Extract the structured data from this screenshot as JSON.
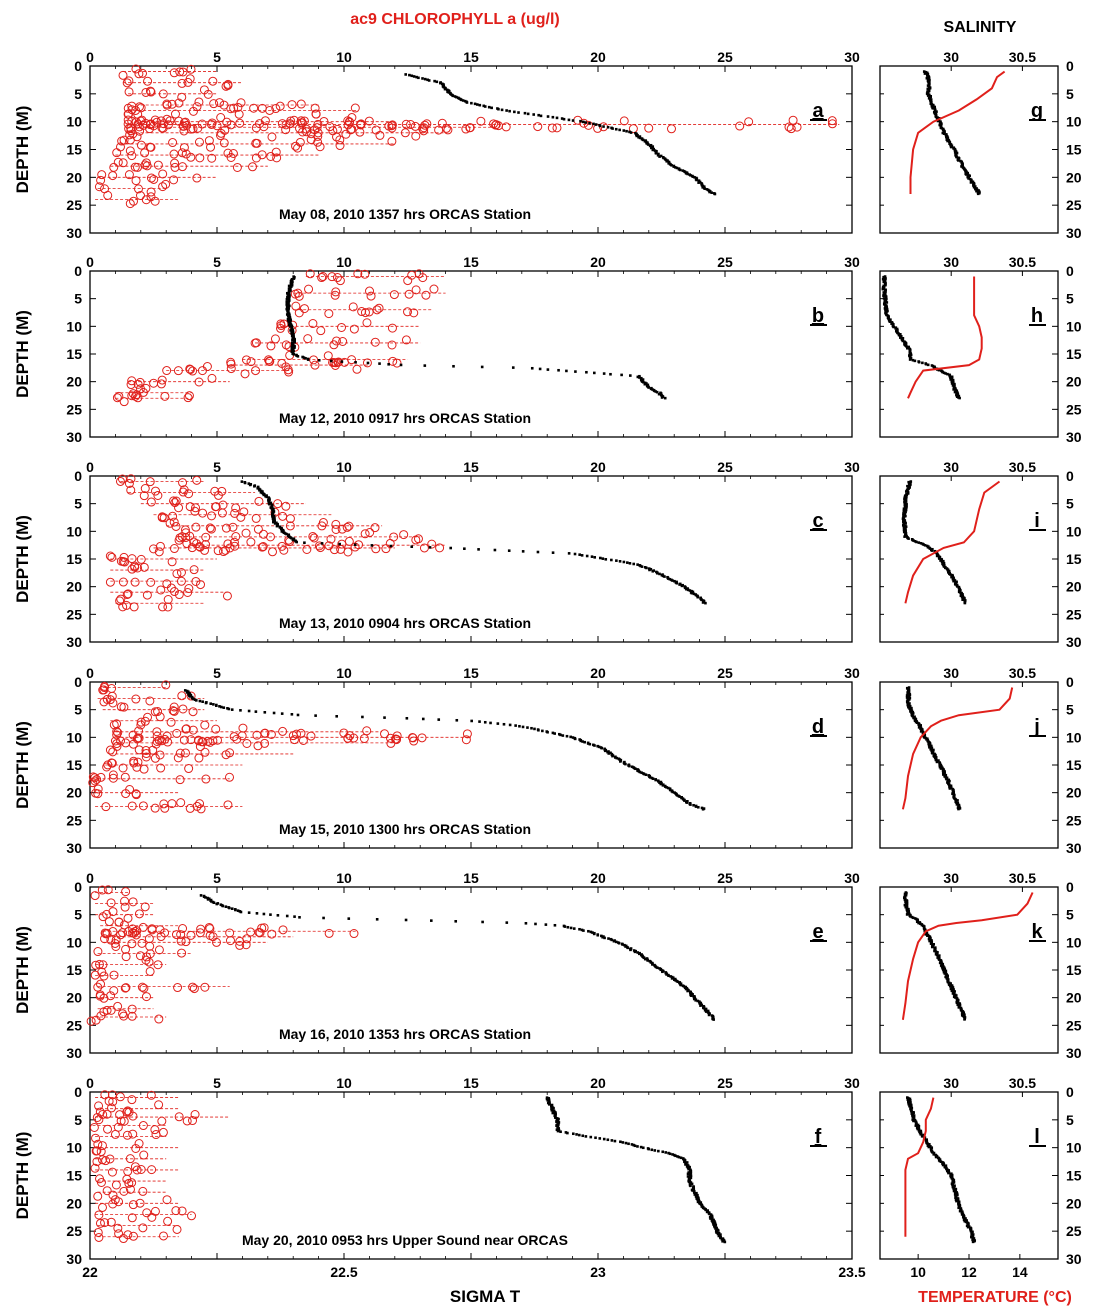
{
  "figure": {
    "top_title": "ac9 CHLOROPHYLL a (ug/l)",
    "right_top_title": "SALINITY",
    "bottom_xlabel": "SIGMA T",
    "right_bottom_xlabel": "TEMPERATURE (°C)",
    "ylabel": "DEPTH (M)",
    "colors": {
      "chlorophyll": "#e0201b",
      "sigma_t": "#000000",
      "temperature": "#e0201b",
      "salinity": "#000000"
    }
  },
  "chart_data": [
    {
      "type": "scatter",
      "id": "a",
      "panel_label": "a",
      "caption": "May 08, 2010  1357 hrs ORCAS Station",
      "xlabel": "ac9 CHLOROPHYLL a (ug/l)",
      "ylabel": "DEPTH (M)",
      "chl_xlim": [
        0,
        30
      ],
      "sigma_t_xlim": [
        22,
        23.5
      ],
      "ylim": [
        30,
        0
      ],
      "chl_ticks": [
        "0",
        "5",
        "10",
        "15",
        "20",
        "25",
        "30"
      ],
      "y_ticks": [
        "0",
        "5",
        "10",
        "15",
        "20",
        "25",
        "30"
      ],
      "chlorophyll": {
        "depth": [
          1,
          3,
          5,
          7,
          8,
          10,
          10.5,
          11,
          12,
          14,
          16,
          18,
          20,
          22,
          24
        ],
        "min": [
          1.3,
          1.3,
          1.5,
          1.8,
          1.5,
          1.8,
          1.5,
          1.5,
          1.4,
          1.2,
          1.0,
          0.8,
          0.3,
          0.3,
          0.2
        ],
        "max": [
          5.0,
          6.0,
          5.0,
          9.0,
          10.5,
          12.0,
          29.5,
          16.0,
          14.0,
          12.0,
          9.0,
          7.0,
          5.0,
          3.0,
          3.5
        ]
      },
      "sigma_t": {
        "depth": [
          1.5,
          3,
          5,
          6.5,
          8,
          10,
          12,
          14,
          16,
          18,
          20,
          22,
          23
        ],
        "value": [
          22.62,
          22.69,
          22.71,
          22.74,
          22.82,
          22.97,
          23.07,
          23.1,
          23.12,
          23.15,
          23.19,
          23.21,
          23.23
        ]
      }
    },
    {
      "type": "scatter",
      "id": "g",
      "panel_label": "g",
      "x_ticks": [
        "30",
        "30.5"
      ],
      "xlim_salinity": [
        29.5,
        30.75
      ],
      "xlim_temperature": [
        8.5,
        15.5
      ],
      "ylim": [
        30,
        0
      ],
      "y_ticks": [
        "0",
        "5",
        "10",
        "15",
        "20",
        "25",
        "30"
      ],
      "salinity": {
        "depth": [
          1,
          3,
          5,
          7,
          9,
          12,
          15,
          18,
          21,
          23
        ],
        "value": [
          29.82,
          29.85,
          29.84,
          29.87,
          29.9,
          29.95,
          30.02,
          30.08,
          30.15,
          30.2
        ]
      },
      "temperature": {
        "depth": [
          1,
          2,
          4,
          6,
          8,
          10,
          12,
          15,
          20,
          23
        ],
        "value": [
          13.4,
          13.1,
          12.9,
          12.3,
          11.6,
          10.6,
          10.0,
          9.8,
          9.7,
          9.7
        ]
      }
    },
    {
      "type": "scatter",
      "id": "b",
      "panel_label": "b",
      "caption": "May 12, 2010  0917 hrs ORCAS Station",
      "chl_xlim": [
        0,
        30
      ],
      "sigma_t_xlim": [
        22,
        23.5
      ],
      "ylim": [
        30,
        0
      ],
      "chl_ticks": [
        "0",
        "5",
        "10",
        "15",
        "20",
        "25",
        "30"
      ],
      "y_ticks": [
        "0",
        "5",
        "10",
        "15",
        "20",
        "25",
        "30"
      ],
      "chlorophyll": {
        "depth": [
          1,
          4,
          7,
          10,
          13,
          16,
          17,
          18,
          20,
          22,
          23
        ],
        "min": [
          8.5,
          8.0,
          8.0,
          7.5,
          6.5,
          6.0,
          5.5,
          3.0,
          1.5,
          1.0,
          1.0
        ],
        "max": [
          14.0,
          14.0,
          13.5,
          13.0,
          13.0,
          12.5,
          11.0,
          8.0,
          5.5,
          4.0,
          4.0
        ]
      },
      "sigma_t": {
        "depth": [
          1,
          4,
          8,
          12,
          15,
          16,
          17,
          17.5,
          19,
          21,
          22,
          23
        ],
        "value": [
          22.4,
          22.39,
          22.39,
          22.4,
          22.4,
          22.43,
          22.62,
          22.86,
          23.08,
          23.1,
          23.12,
          23.13
        ]
      }
    },
    {
      "type": "scatter",
      "id": "h",
      "panel_label": "h",
      "x_ticks": [
        "30",
        "30.5"
      ],
      "xlim_salinity": [
        29.5,
        30.75
      ],
      "xlim_temperature": [
        8.5,
        15.5
      ],
      "ylim": [
        30,
        0
      ],
      "y_ticks": [
        "0",
        "5",
        "10",
        "15",
        "20",
        "25",
        "30"
      ],
      "salinity": {
        "depth": [
          1,
          4,
          8,
          10,
          12,
          14,
          16,
          17,
          19,
          21,
          23
        ],
        "value": [
          29.53,
          29.53,
          29.55,
          29.6,
          29.65,
          29.7,
          29.72,
          29.85,
          30.0,
          30.02,
          30.05
        ]
      },
      "temperature": {
        "depth": [
          1,
          4,
          8,
          10,
          12,
          14,
          16,
          17,
          18,
          20,
          22,
          23
        ],
        "value": [
          12.2,
          12.2,
          12.2,
          12.4,
          12.5,
          12.5,
          12.4,
          12.0,
          10.2,
          9.9,
          9.7,
          9.6
        ]
      }
    },
    {
      "type": "scatter",
      "id": "c",
      "panel_label": "c",
      "caption": "May 13,  2010  0904 hrs ORCAS Station",
      "chl_xlim": [
        0,
        30
      ],
      "sigma_t_xlim": [
        22,
        23.5
      ],
      "ylim": [
        30,
        0
      ],
      "chl_ticks": [
        "0",
        "5",
        "10",
        "15",
        "20",
        "25",
        "30"
      ],
      "y_ticks": [
        "0",
        "5",
        "10",
        "15",
        "20",
        "25",
        "30"
      ],
      "chlorophyll": {
        "depth": [
          1,
          3,
          5,
          7,
          9,
          11,
          12.5,
          13,
          15,
          17,
          19,
          21,
          23
        ],
        "min": [
          1.2,
          1.5,
          2.0,
          2.5,
          3.0,
          3.5,
          4.0,
          2.5,
          0.8,
          0.8,
          0.8,
          0.8,
          1.0
        ],
        "max": [
          4.5,
          6.5,
          8.5,
          9.5,
          11.5,
          13.0,
          14.0,
          12.0,
          5.0,
          4.5,
          4.5,
          5.5,
          4.5
        ]
      },
      "sigma_t": {
        "depth": [
          1,
          2,
          4,
          6,
          8,
          10,
          12,
          12.5,
          13,
          14,
          16,
          18,
          20,
          22,
          23
        ],
        "value": [
          22.3,
          22.33,
          22.35,
          22.36,
          22.36,
          22.38,
          22.41,
          22.55,
          22.71,
          22.95,
          23.08,
          23.13,
          23.17,
          23.2,
          23.21
        ]
      }
    },
    {
      "type": "scatter",
      "id": "i",
      "panel_label": "i",
      "x_ticks": [
        "30",
        "30.5"
      ],
      "xlim_salinity": [
        29.5,
        30.75
      ],
      "xlim_temperature": [
        8.5,
        15.5
      ],
      "ylim": [
        30,
        0
      ],
      "y_ticks": [
        "0",
        "5",
        "10",
        "15",
        "20",
        "25",
        "30"
      ],
      "salinity": {
        "depth": [
          1,
          4,
          8,
          11,
          12.5,
          14,
          16,
          18,
          20,
          23
        ],
        "value": [
          29.71,
          29.68,
          29.67,
          29.68,
          29.82,
          29.9,
          29.95,
          30.0,
          30.05,
          30.1
        ]
      },
      "temperature": {
        "depth": [
          1,
          3,
          6,
          10,
          12,
          13,
          15,
          18,
          21,
          23
        ],
        "value": [
          13.2,
          12.6,
          12.4,
          12.2,
          11.8,
          11.0,
          10.2,
          9.8,
          9.6,
          9.5
        ]
      }
    },
    {
      "type": "scatter",
      "id": "d",
      "panel_label": "d",
      "caption": "May 15,  2010  1300 hrs ORCAS Station",
      "chl_xlim": [
        0,
        30
      ],
      "sigma_t_xlim": [
        22,
        23.5
      ],
      "ylim": [
        30,
        0
      ],
      "chl_ticks": [
        "0",
        "5",
        "10",
        "15",
        "20",
        "25",
        "30"
      ],
      "y_ticks": [
        "0",
        "5",
        "10",
        "15",
        "20",
        "25",
        "30"
      ],
      "chlorophyll": {
        "depth": [
          1,
          3,
          5,
          7,
          9,
          10,
          11,
          13,
          15,
          17.5,
          20,
          22.5
        ],
        "min": [
          0.5,
          0.3,
          0.5,
          0.8,
          1.0,
          1.2,
          1.0,
          0.8,
          0.6,
          0.1,
          0.2,
          0.2
        ],
        "max": [
          3.0,
          4.5,
          4.5,
          5.0,
          11.5,
          15.0,
          12.0,
          8.0,
          6.0,
          5.5,
          3.5,
          6.0
        ]
      },
      "sigma_t": {
        "depth": [
          1.5,
          3,
          5,
          6,
          6.5,
          7,
          8,
          10,
          12,
          14,
          16,
          18,
          20,
          22,
          23
        ],
        "value": [
          22.19,
          22.2,
          22.28,
          22.42,
          22.61,
          22.75,
          22.85,
          22.95,
          23.01,
          23.04,
          23.08,
          23.12,
          23.15,
          23.18,
          23.21
        ]
      }
    },
    {
      "type": "scatter",
      "id": "j",
      "panel_label": "j",
      "x_ticks": [
        "30",
        "30.5"
      ],
      "xlim_salinity": [
        29.5,
        30.75
      ],
      "xlim_temperature": [
        8.5,
        15.5
      ],
      "ylim": [
        30,
        0
      ],
      "y_ticks": [
        "0",
        "5",
        "10",
        "15",
        "20",
        "25",
        "30"
      ],
      "salinity": {
        "depth": [
          1,
          4,
          6,
          8,
          10,
          12,
          15,
          18,
          21,
          23
        ],
        "value": [
          29.7,
          29.7,
          29.73,
          29.78,
          29.82,
          29.86,
          29.92,
          29.98,
          30.03,
          30.06
        ]
      },
      "temperature": {
        "depth": [
          1,
          3,
          5,
          6,
          7,
          8,
          10,
          13,
          17,
          21,
          23
        ],
        "value": [
          13.7,
          13.6,
          13.2,
          11.6,
          10.9,
          10.5,
          10.1,
          9.8,
          9.6,
          9.5,
          9.4
        ]
      }
    },
    {
      "type": "scatter",
      "id": "e",
      "panel_label": "e",
      "caption": "May 16,  2010  1353 hrs ORCAS Station",
      "chl_xlim": [
        0,
        30
      ],
      "sigma_t_xlim": [
        22,
        23.5
      ],
      "ylim": [
        30,
        0
      ],
      "chl_ticks": [
        "0",
        "5",
        "10",
        "15",
        "20",
        "25",
        "30"
      ],
      "y_ticks": [
        "0",
        "5",
        "10",
        "15",
        "20",
        "25",
        "30"
      ],
      "chlorophyll": {
        "depth": [
          1,
          3,
          5,
          7,
          8,
          9,
          10,
          12,
          14,
          16,
          18,
          20,
          22,
          23.5
        ],
        "min": [
          0.2,
          0.2,
          0.2,
          0.4,
          0.5,
          0.5,
          0.5,
          0.3,
          0.2,
          0.2,
          0.3,
          0.4,
          0.3,
          0.0
        ],
        "max": [
          1.5,
          2.5,
          2.5,
          3.5,
          10.5,
          8.0,
          7.0,
          4.0,
          3.0,
          2.5,
          5.5,
          2.5,
          2.5,
          3.0
        ]
      },
      "sigma_t": {
        "depth": [
          1.5,
          3,
          4.5,
          5.5,
          6,
          6.5,
          7,
          8,
          10,
          12,
          14,
          16,
          18,
          20,
          22,
          24
        ],
        "value": [
          22.22,
          22.25,
          22.3,
          22.42,
          22.65,
          22.85,
          22.93,
          22.98,
          23.04,
          23.08,
          23.11,
          23.14,
          23.17,
          23.19,
          23.21,
          23.23
        ]
      }
    },
    {
      "type": "scatter",
      "id": "k",
      "panel_label": "k",
      "x_ticks": [
        "30",
        "30.5"
      ],
      "xlim_salinity": [
        29.5,
        30.75
      ],
      "xlim_temperature": [
        8.5,
        15.5
      ],
      "ylim": [
        30,
        0
      ],
      "y_ticks": [
        "0",
        "5",
        "10",
        "15",
        "20",
        "25",
        "30"
      ],
      "salinity": {
        "depth": [
          1,
          3,
          5,
          6,
          7,
          9,
          12,
          15,
          18,
          21,
          24
        ],
        "value": [
          29.68,
          29.68,
          29.7,
          29.76,
          29.8,
          29.84,
          29.9,
          29.95,
          30.0,
          30.05,
          30.1
        ]
      },
      "temperature": {
        "depth": [
          1,
          3,
          5,
          6,
          6.5,
          7,
          8,
          10,
          13,
          17,
          21,
          24
        ],
        "value": [
          14.5,
          14.3,
          13.9,
          12.5,
          11.5,
          10.8,
          10.3,
          10.0,
          9.8,
          9.6,
          9.5,
          9.4
        ]
      }
    },
    {
      "type": "scatter",
      "id": "f",
      "panel_label": "f",
      "caption": "May 20,  2010  0953 hrs Upper Sound near ORCAS",
      "chl_xlim": [
        0,
        30
      ],
      "sigma_t_xlim": [
        22,
        23.5
      ],
      "ylim": [
        30,
        0
      ],
      "chl_ticks": [
        "0",
        "5",
        "10",
        "15",
        "20",
        "25",
        "30"
      ],
      "y_ticks": [
        "0",
        "5",
        "10",
        "15",
        "20",
        "25",
        "30"
      ],
      "sigma_t_ticks": [
        "22",
        "22.5",
        "23",
        "23.5"
      ],
      "chlorophyll": {
        "depth": [
          1,
          3,
          4.5,
          6,
          8,
          10,
          12,
          14,
          16,
          18,
          20,
          22,
          24,
          26
        ],
        "min": [
          0.2,
          0.2,
          0.2,
          0.1,
          0.2,
          0.2,
          0.2,
          0.2,
          0.3,
          0.3,
          0.2,
          0.2,
          0.3,
          0.3
        ],
        "max": [
          3.5,
          3.5,
          5.5,
          3.0,
          3.0,
          3.5,
          3.0,
          3.5,
          3.0,
          3.0,
          3.5,
          4.0,
          3.5,
          3.5
        ]
      },
      "sigma_t": {
        "depth": [
          1,
          3,
          5,
          7,
          8,
          9,
          10,
          11,
          12,
          14,
          16,
          18,
          20,
          22,
          24,
          26,
          27
        ],
        "value": [
          22.9,
          22.91,
          22.92,
          22.92,
          22.98,
          23.05,
          23.09,
          23.14,
          23.17,
          23.18,
          23.18,
          23.19,
          23.2,
          23.22,
          23.23,
          23.24,
          23.25
        ]
      }
    },
    {
      "type": "scatter",
      "id": "l",
      "panel_label": "l",
      "xlim_temperature": [
        8.5,
        15.5
      ],
      "xlim_salinity": [
        29.5,
        30.75
      ],
      "ylim": [
        30,
        0
      ],
      "y_ticks": [
        "0",
        "5",
        "10",
        "15",
        "20",
        "25",
        "30"
      ],
      "x_ticks": [
        "30",
        "30.5"
      ],
      "temperature_ticks": [
        "10",
        "12",
        "14"
      ],
      "salinity": {
        "depth": [
          1,
          3,
          5,
          7,
          9,
          11,
          13,
          15,
          17,
          19,
          21,
          23,
          25,
          27
        ],
        "value": [
          29.7,
          29.72,
          29.74,
          29.78,
          29.83,
          29.88,
          29.95,
          30.0,
          30.02,
          30.04,
          30.06,
          30.1,
          30.14,
          30.16
        ]
      },
      "temperature": {
        "depth": [
          1,
          3,
          5,
          7,
          9,
          11,
          12,
          14,
          17,
          20,
          23,
          26
        ],
        "value": [
          10.6,
          10.5,
          10.3,
          10.3,
          10.2,
          10.0,
          9.6,
          9.5,
          9.5,
          9.5,
          9.5,
          9.5
        ]
      }
    }
  ]
}
